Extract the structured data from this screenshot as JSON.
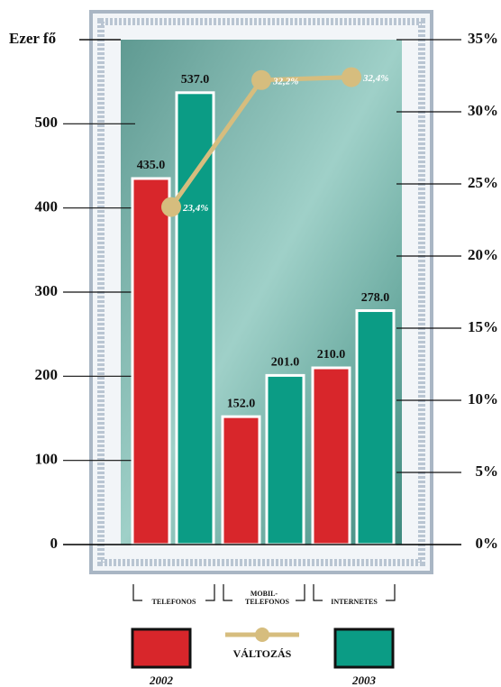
{
  "chart_data": {
    "type": "bar",
    "y_label": "Ezer fő",
    "categories": [
      "TELEFONOS",
      "MOBIL-TELEFONOS",
      "INTERNETES"
    ],
    "series": [
      {
        "name": "2002",
        "color": "#d8262b",
        "values": [
          435.0,
          152.0,
          210.0
        ],
        "value_labels": [
          "435.0",
          "152.0",
          "210.0"
        ]
      },
      {
        "name": "2003",
        "color": "#0b9c85",
        "values": [
          537.0,
          201.0,
          278.0
        ],
        "value_labels": [
          "537.0",
          "201.0",
          "278.0"
        ]
      },
      {
        "name": "VÁLTOZÁS",
        "type": "line",
        "axis": "y2",
        "color": "#d6bd7e",
        "values": [
          23.4,
          32.2,
          32.4
        ],
        "value_labels": [
          "23,4%",
          "32,2%",
          "32,4%"
        ]
      }
    ],
    "ylim": [
      0,
      600
    ],
    "yticks": [
      0,
      100,
      200,
      300,
      400,
      500
    ],
    "y2lim": [
      0,
      35
    ],
    "y2ticks": [
      {
        "value": 0,
        "label": "0%"
      },
      {
        "value": 5,
        "label": "5%"
      },
      {
        "value": 10,
        "label": "10%"
      },
      {
        "value": 15,
        "label": "15%"
      },
      {
        "value": 20,
        "label": "20%"
      },
      {
        "value": 25,
        "label": "25%"
      },
      {
        "value": 30,
        "label": "30%"
      },
      {
        "value": 35,
        "label": "35%"
      }
    ]
  }
}
